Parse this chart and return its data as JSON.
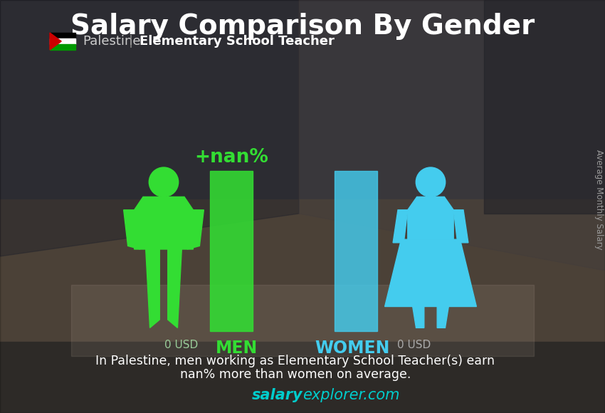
{
  "title": "Salary Comparison By Gender",
  "subtitle_country": "Palestine",
  "subtitle_job": "Elementary School Teacher",
  "men_salary": 0,
  "women_salary": 0,
  "men_label": "MEN",
  "women_label": "WOMEN",
  "men_salary_label": "0 USD",
  "women_salary_label": "0 USD",
  "percentage_label": "+nan%",
  "bar_men_color": "#33dd33",
  "bar_women_color": "#44ccee",
  "icon_men_color": "#33dd33",
  "icon_women_color": "#44ccee",
  "men_label_color": "#33dd33",
  "women_label_color": "#44ccee",
  "salary_label_color": "#99cc99",
  "women_salary_label_color": "#aaaaaa",
  "percentage_color": "#33dd33",
  "title_color": "#ffffff",
  "footer_text_line1": "In Palestine, men working as Elementary School Teacher(s) earn",
  "footer_text_line2": "nan% more than women on average.",
  "footer_color": "#ffffff",
  "watermark_salary": "salary",
  "watermark_explorer": "explorer",
  "watermark_com": ".com",
  "watermark_color": "#00cccc",
  "ylabel_text": "Average Monthly Salary",
  "ylabel_color": "#999999",
  "flag_colors": [
    "#000000",
    "#ffffff",
    "#009000",
    "#ee0000"
  ],
  "bg_top_color": "#4a4a5a",
  "bg_mid_color": "#6a6a5a",
  "bg_bottom_color": "#3a3a3a"
}
